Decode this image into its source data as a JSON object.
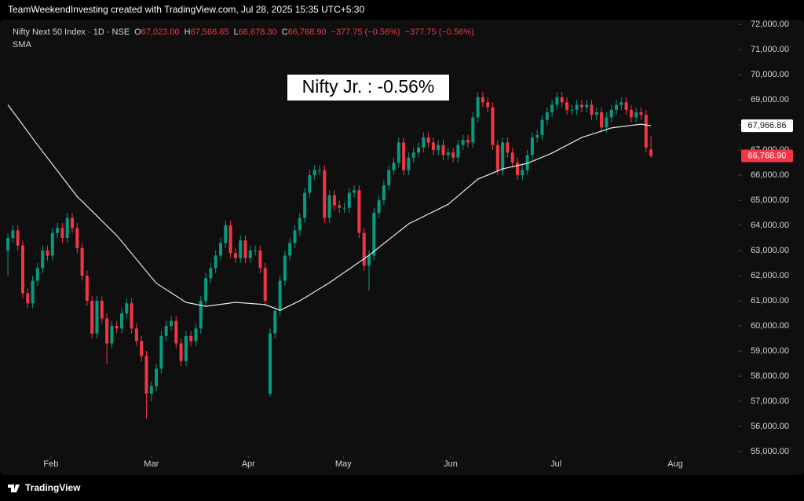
{
  "header": {
    "title": "TeamWeekendInvesting created with TradingView.com, Jul 28, 2025 15:35 UTC+5:30",
    "symbol": "Nifty Next 50 Index · 1D · NSE",
    "ohlc": [
      {
        "key": "O",
        "value": "67,023.00"
      },
      {
        "key": "H",
        "value": "67,566.65"
      },
      {
        "key": "L",
        "value": "66,678.30"
      },
      {
        "key": "C",
        "value": "66,768.90"
      }
    ],
    "changes": [
      "−377.75 (−0.56%)",
      "−377.75 (−0.56%)"
    ],
    "indicator": "SMA"
  },
  "footer": {
    "brand": "TradingView"
  },
  "chart_data": {
    "type": "candlestick",
    "annotation": "Nifty Jr. : -0.56%",
    "up_color": "#089981",
    "down_color": "#f23645",
    "grid": false,
    "xlim": [
      -1.6,
      147.6
    ],
    "xticks": [
      {
        "value": 8.7,
        "label": "Feb"
      },
      {
        "value": 29,
        "label": "Mar"
      },
      {
        "value": 48.6,
        "label": "Apr"
      },
      {
        "value": 67.8,
        "label": "May"
      },
      {
        "value": 89.5,
        "label": "Jun"
      },
      {
        "value": 110.8,
        "label": "Jul"
      },
      {
        "value": 134.9,
        "label": "Aug"
      }
    ],
    "ylim": [
      54220,
      72190
    ],
    "yticks": [
      {
        "value": 55000,
        "label": "55,000.00"
      },
      {
        "value": 56000,
        "label": "56,000.00"
      },
      {
        "value": 57000,
        "label": "57,000.00"
      },
      {
        "value": 58000,
        "label": "58,000.00"
      },
      {
        "value": 59000,
        "label": "59,000.00"
      },
      {
        "value": 60000,
        "label": "60,000.00"
      },
      {
        "value": 61000,
        "label": "61,000.00"
      },
      {
        "value": 62000,
        "label": "62,000.00"
      },
      {
        "value": 63000,
        "label": "63,000.00"
      },
      {
        "value": 64000,
        "label": "64,000.00"
      },
      {
        "value": 65000,
        "label": "65,000.00"
      },
      {
        "value": 66000,
        "label": "66,000.00"
      },
      {
        "value": 67000,
        "label": "67,000.00"
      },
      {
        "value": 68000,
        "label": "68,000.00"
      },
      {
        "value": 69000,
        "label": "69,000.00"
      },
      {
        "value": 70000,
        "label": "70,000.00"
      },
      {
        "value": 71000,
        "label": "71,000.00"
      },
      {
        "value": 72000,
        "label": "72,000.00"
      }
    ],
    "open": [
      63000,
      63500,
      63800,
      63200,
      61300,
      60900,
      61800,
      62300,
      63000,
      62800,
      63700,
      63900,
      63500,
      64300,
      63900,
      63100,
      62000,
      61000,
      59700,
      61000,
      60300,
      59300,
      60000,
      59900,
      60500,
      60900,
      59900,
      59400,
      58800,
      57300,
      57600,
      58300,
      59600,
      60000,
      60200,
      59300,
      58600,
      59600,
      59400,
      59900,
      61000,
      61900,
      62300,
      62800,
      63300,
      64000,
      62900,
      62700,
      63400,
      62700,
      63000,
      63000,
      62300,
      57300,
      59700,
      60600,
      61800,
      62800,
      63300,
      63800,
      64300,
      65300,
      66000,
      66200,
      66200,
      64300,
      65200,
      64800,
      64700,
      64700,
      65300,
      65400,
      63700,
      62400,
      62800,
      64500,
      65000,
      65600,
      66200,
      66500,
      67300,
      66200,
      66700,
      66900,
      67100,
      67500,
      67300,
      67000,
      67200,
      66800,
      66900,
      66700,
      67200,
      67400,
      67300,
      68300,
      69100,
      68900,
      68700,
      67200,
      66200,
      67300,
      66900,
      66500,
      66000,
      66200,
      66800,
      67500,
      67600,
      68200,
      68500,
      68800,
      69100,
      68900,
      68600,
      68600,
      68800,
      68700,
      68800,
      68400,
      68500,
      67900,
      68300,
      68600,
      68800,
      68900,
      68600,
      68300,
      68500,
      68400,
      67023
    ],
    "high": [
      63700,
      64000,
      64000,
      63400,
      61500,
      62000,
      62500,
      63200,
      63200,
      63900,
      64100,
      64100,
      64500,
      64500,
      64100,
      63300,
      62200,
      61200,
      61200,
      61200,
      60500,
      60200,
      60200,
      60700,
      61100,
      61100,
      60100,
      59600,
      59000,
      57800,
      58500,
      59800,
      60200,
      60400,
      60400,
      59500,
      59800,
      59800,
      60100,
      61200,
      62100,
      62500,
      63000,
      63500,
      64200,
      64200,
      63100,
      63600,
      63600,
      63200,
      63200,
      63200,
      62500,
      59900,
      60800,
      62000,
      63000,
      63500,
      64000,
      64500,
      65500,
      66200,
      66400,
      66400,
      66400,
      65400,
      65400,
      65000,
      64900,
      65500,
      65600,
      65600,
      63900,
      63000,
      64700,
      65200,
      65800,
      66400,
      66700,
      67500,
      67500,
      66900,
      67100,
      67300,
      67700,
      67700,
      67500,
      67400,
      67400,
      67100,
      67100,
      67400,
      67600,
      67600,
      68500,
      69300,
      69300,
      69100,
      68900,
      67400,
      67500,
      67500,
      67100,
      66700,
      66400,
      67000,
      67700,
      67800,
      68400,
      68700,
      69000,
      69300,
      69300,
      69100,
      68800,
      69000,
      69000,
      69000,
      69000,
      68700,
      68700,
      68500,
      68800,
      69000,
      69100,
      69100,
      68800,
      68700,
      68700,
      68600,
      67566.65
    ],
    "low": [
      62000,
      63300,
      63000,
      61100,
      60700,
      60700,
      61600,
      62100,
      62600,
      62600,
      63500,
      63300,
      63300,
      63700,
      62900,
      61800,
      60800,
      59500,
      59500,
      60100,
      58500,
      59100,
      59700,
      59700,
      60300,
      59700,
      59200,
      58600,
      56300,
      57000,
      57400,
      58100,
      59400,
      59800,
      59100,
      58400,
      58400,
      59200,
      59200,
      59700,
      60800,
      61700,
      62100,
      62600,
      63100,
      62700,
      62500,
      62500,
      62500,
      62500,
      62800,
      62100,
      60800,
      57200,
      59500,
      60400,
      61600,
      62600,
      63100,
      63600,
      64100,
      65100,
      65800,
      66000,
      64100,
      64100,
      64600,
      64500,
      64500,
      64500,
      65100,
      63500,
      62200,
      61400,
      62600,
      64300,
      64800,
      65400,
      66000,
      66300,
      66000,
      66000,
      66500,
      66700,
      66900,
      67100,
      66800,
      66800,
      66600,
      66600,
      66500,
      66500,
      67000,
      67100,
      67100,
      68100,
      68700,
      68500,
      67000,
      66000,
      66000,
      66700,
      66300,
      65800,
      65800,
      66000,
      66600,
      67300,
      67400,
      68000,
      68300,
      68600,
      68700,
      68400,
      68400,
      68400,
      68500,
      68500,
      68200,
      68200,
      67700,
      67700,
      68100,
      68400,
      68600,
      68400,
      68100,
      68100,
      68200,
      66900,
      66678.3
    ],
    "close": [
      63500,
      63800,
      63200,
      61300,
      60900,
      61800,
      62300,
      63000,
      62800,
      63700,
      63900,
      63500,
      64300,
      63900,
      63100,
      62000,
      61000,
      59700,
      61000,
      60300,
      59300,
      60000,
      59900,
      60500,
      60900,
      59900,
      59400,
      58800,
      57300,
      57600,
      58300,
      59600,
      60000,
      60200,
      59300,
      58600,
      59600,
      59400,
      59900,
      61000,
      61900,
      62300,
      62800,
      63300,
      64000,
      62900,
      62700,
      63400,
      62700,
      63000,
      63000,
      62300,
      61000,
      59700,
      60600,
      61800,
      62800,
      63300,
      63800,
      64300,
      65300,
      66000,
      66200,
      66200,
      64300,
      65200,
      64800,
      64700,
      64700,
      65300,
      65400,
      63700,
      62400,
      62800,
      64500,
      65000,
      65600,
      66200,
      66500,
      67300,
      66200,
      66700,
      66900,
      67100,
      67500,
      67300,
      67000,
      67200,
      66800,
      66900,
      66700,
      67200,
      67400,
      67300,
      68300,
      69100,
      68900,
      68700,
      67200,
      66200,
      67300,
      66900,
      66500,
      66000,
      66200,
      66800,
      67500,
      67600,
      68200,
      68500,
      68800,
      69100,
      68900,
      68600,
      68600,
      68800,
      68700,
      68800,
      68400,
      68500,
      67900,
      68300,
      68600,
      68800,
      68900,
      68600,
      68300,
      68500,
      68400,
      67100,
      66768.9
    ],
    "last_label": "66,768.90",
    "sma": {
      "color": "#e8e8e8",
      "x": [
        0,
        6,
        14,
        22,
        30,
        36,
        40,
        46,
        52,
        55,
        59,
        65,
        73,
        81,
        89,
        95,
        100,
        105,
        110,
        116,
        122,
        128,
        130
      ],
      "values": [
        68800,
        67200,
        65150,
        63600,
        61700,
        60940,
        60780,
        60940,
        60850,
        60620,
        61000,
        61720,
        62810,
        64060,
        64840,
        65840,
        66250,
        66470,
        66880,
        67500,
        67880,
        68030,
        67966.86
      ],
      "last_label": "67,966.86"
    }
  }
}
